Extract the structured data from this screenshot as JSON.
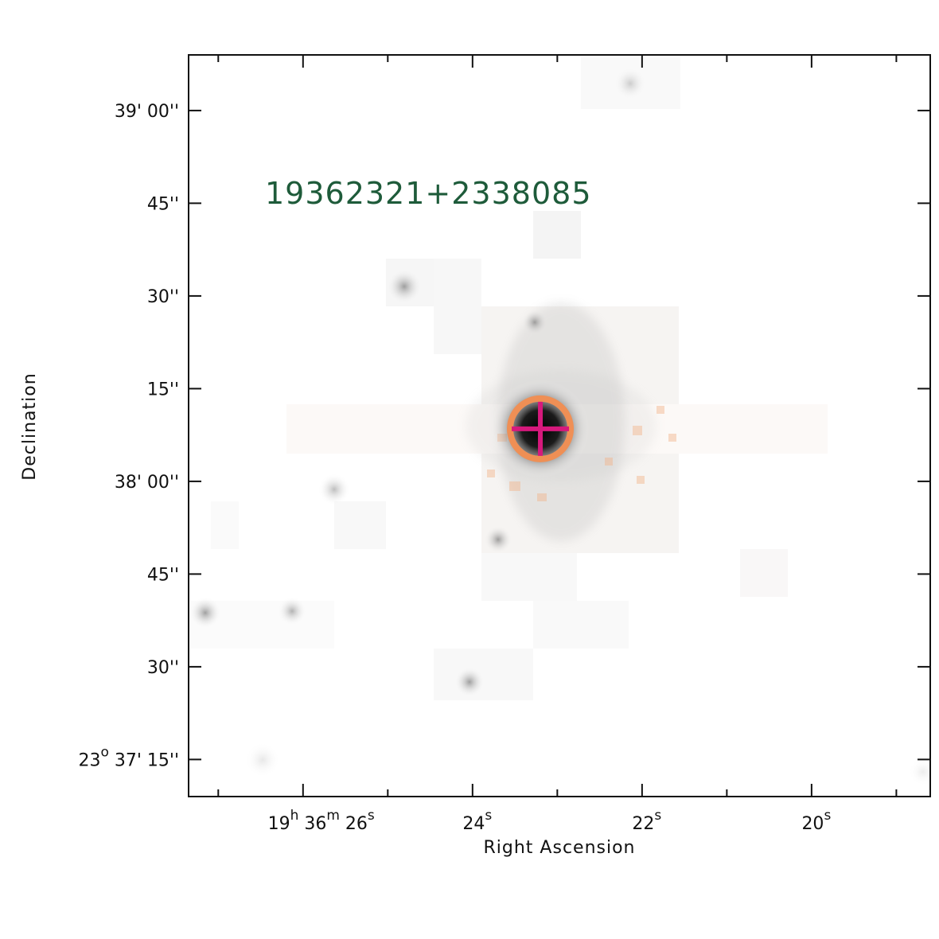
{
  "chart_data": {
    "type": "image",
    "source_label": "19362321+2338085",
    "source_label_color": "#1e5b3a",
    "xlabel": "Right Ascension",
    "ylabel": "Declination",
    "x_ticks": [
      {
        "value": 26,
        "label_parts": [
          [
            "19",
            ""
          ],
          [
            "h",
            "sup"
          ],
          [
            " 36",
            ""
          ],
          [
            "m",
            "sup"
          ],
          [
            " 26",
            ""
          ],
          [
            "s",
            "sup"
          ]
        ]
      },
      {
        "value": 24,
        "label_parts": [
          [
            "24",
            ""
          ],
          [
            "s",
            "sup"
          ]
        ]
      },
      {
        "value": 22,
        "label_parts": [
          [
            "22",
            ""
          ],
          [
            "s",
            "sup"
          ]
        ]
      },
      {
        "value": 20,
        "label_parts": [
          [
            "20",
            ""
          ],
          [
            "s",
            "sup"
          ]
        ]
      }
    ],
    "x_minor_ticks": [
      27,
      25,
      23,
      21,
      19
    ],
    "xlim": [
      27.35,
      18.6
    ],
    "y_ticks": [
      {
        "value": 119,
        "label_parts": [
          [
            "39' 00''",
            ""
          ]
        ]
      },
      {
        "value": 104,
        "label_parts": [
          [
            "45''",
            ""
          ]
        ]
      },
      {
        "value": 89,
        "label_parts": [
          [
            "30''",
            ""
          ]
        ]
      },
      {
        "value": 74,
        "label_parts": [
          [
            "15''",
            ""
          ]
        ]
      },
      {
        "value": 59,
        "label_parts": [
          [
            "38' 00''",
            ""
          ]
        ]
      },
      {
        "value": 44,
        "label_parts": [
          [
            "45''",
            ""
          ]
        ]
      },
      {
        "value": 29,
        "label_parts": [
          [
            "30''",
            ""
          ]
        ]
      },
      {
        "value": 14,
        "label_parts": [
          [
            "23",
            ""
          ],
          [
            "o",
            "sup"
          ],
          [
            " 37' 15''",
            ""
          ]
        ]
      }
    ],
    "ylim": [
      8,
      128
    ],
    "target": {
      "ra_s": 23.2,
      "dec_arcsec": 67.5
    },
    "circle_color": "#ef8f55",
    "cross_color": "#d6197c",
    "grid": false,
    "legend": "none"
  }
}
